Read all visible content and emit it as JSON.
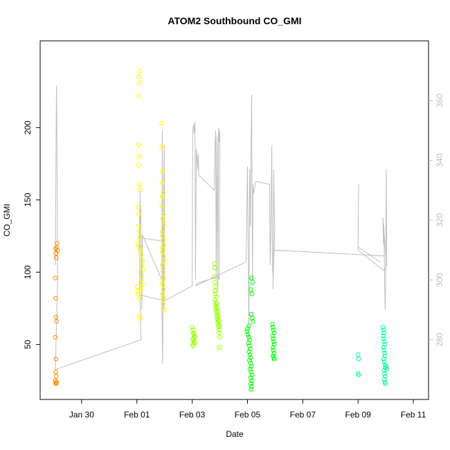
{
  "chart_data": {
    "type": "scatter",
    "title": "ATOM2 Southbound CO_GMI",
    "xlabel": "Date",
    "ylabel": "CO_GMI",
    "x_ticks": [
      "Jan 30",
      "Feb 01",
      "Feb 03",
      "Feb 05",
      "Feb 07",
      "Feb 09",
      "Feb 11"
    ],
    "x_tick_days": [
      -2,
      0,
      2,
      4,
      6,
      8,
      10
    ],
    "xlim_days": [
      -3.5,
      10.55
    ],
    "ylim": [
      12,
      260
    ],
    "y_ticks": [
      50,
      100,
      150,
      200
    ],
    "y2lim": [
      260,
      380
    ],
    "y2_ticks": [
      280,
      300,
      320,
      340,
      360
    ],
    "right_axis_color": "#bebebe",
    "grid": false,
    "legend": "none",
    "series": [
      {
        "color": "#ff8c00",
        "points": [
          [
            -2.95,
            116
          ],
          [
            -2.93,
            113
          ],
          [
            -2.92,
            110
          ],
          [
            -2.91,
            117
          ],
          [
            -2.89,
            120
          ],
          [
            -2.87,
            115
          ],
          [
            -2.95,
            96
          ],
          [
            -2.94,
            82
          ],
          [
            -2.93,
            69
          ],
          [
            -2.91,
            66
          ],
          [
            -2.95,
            55
          ],
          [
            -2.93,
            40
          ],
          [
            -2.94,
            31
          ],
          [
            -2.92,
            28
          ],
          [
            -2.95,
            25
          ],
          [
            -2.93,
            24
          ],
          [
            -2.91,
            24
          ],
          [
            -2.94,
            23
          ],
          [
            -2.92,
            23
          ]
        ]
      },
      {
        "color": "#ffff00",
        "points": [
          [
            0.1,
            239
          ],
          [
            0.08,
            235
          ],
          [
            0.09,
            231
          ],
          [
            0.07,
            222
          ],
          [
            0.06,
            188
          ],
          [
            0.08,
            180
          ],
          [
            0.05,
            174
          ],
          [
            0.1,
            161
          ],
          [
            0.12,
            157
          ],
          [
            0.05,
            145
          ],
          [
            0.08,
            140
          ],
          [
            0.06,
            132
          ],
          [
            0.09,
            128
          ],
          [
            0.11,
            124
          ],
          [
            0.04,
            120
          ],
          [
            0.07,
            118
          ],
          [
            0.12,
            115
          ],
          [
            0.15,
            112
          ],
          [
            0.2,
            108
          ],
          [
            0.18,
            105
          ],
          [
            0.22,
            102
          ],
          [
            0.19,
            98
          ],
          [
            0.17,
            95
          ],
          [
            0.21,
            92
          ],
          [
            0.16,
            90
          ],
          [
            0.14,
            88
          ],
          [
            0.05,
            85
          ],
          [
            0.08,
            82
          ],
          [
            0.1,
            70
          ],
          [
            0.12,
            68
          ],
          [
            0.02,
            90
          ],
          [
            0.03,
            87
          ],
          [
            0.9,
            203
          ],
          [
            0.9,
            187
          ],
          [
            0.93,
            170
          ],
          [
            0.91,
            162
          ],
          [
            0.95,
            155
          ],
          [
            0.92,
            152
          ],
          [
            0.9,
            146
          ],
          [
            0.96,
            140
          ],
          [
            0.94,
            137
          ],
          [
            0.97,
            133
          ],
          [
            0.91,
            128
          ],
          [
            0.93,
            125
          ],
          [
            0.95,
            122
          ],
          [
            0.98,
            119
          ],
          [
            0.9,
            117
          ],
          [
            0.92,
            114
          ],
          [
            0.96,
            111
          ],
          [
            0.99,
            108
          ],
          [
            0.93,
            105
          ],
          [
            0.95,
            100
          ],
          [
            0.97,
            96
          ],
          [
            0.91,
            93
          ],
          [
            0.94,
            91
          ],
          [
            0.96,
            88
          ],
          [
            0.92,
            85
          ],
          [
            0.98,
            82
          ],
          [
            0.95,
            78
          ],
          [
            0.99,
            74
          ]
        ]
      },
      {
        "color": "#99ff00",
        "points": [
          [
            2.0,
            62
          ],
          [
            2.02,
            60
          ],
          [
            2.04,
            58
          ],
          [
            2.06,
            57
          ],
          [
            2.08,
            56
          ],
          [
            2.1,
            55
          ],
          [
            2.03,
            54
          ],
          [
            2.05,
            53
          ],
          [
            2.07,
            52
          ],
          [
            2.09,
            51
          ],
          [
            2.01,
            50
          ],
          [
            2.04,
            49
          ],
          [
            2.8,
            106
          ],
          [
            2.82,
            103
          ],
          [
            2.8,
            97
          ],
          [
            2.83,
            93
          ],
          [
            2.85,
            90
          ],
          [
            2.81,
            87
          ],
          [
            2.84,
            85
          ],
          [
            2.87,
            83
          ],
          [
            2.82,
            81
          ],
          [
            2.86,
            79
          ],
          [
            2.89,
            78
          ],
          [
            2.84,
            77
          ],
          [
            2.88,
            76
          ],
          [
            2.91,
            75
          ],
          [
            2.86,
            74
          ],
          [
            2.9,
            73
          ],
          [
            2.93,
            72
          ],
          [
            2.88,
            71
          ],
          [
            2.92,
            70
          ],
          [
            2.95,
            69
          ],
          [
            2.9,
            68
          ],
          [
            2.94,
            67
          ],
          [
            2.97,
            66
          ],
          [
            2.92,
            65
          ],
          [
            2.96,
            64
          ],
          [
            2.99,
            63
          ],
          [
            2.95,
            62
          ],
          [
            2.98,
            60
          ],
          [
            2.97,
            58
          ],
          [
            3.0,
            55
          ],
          [
            2.99,
            48
          ]
        ]
      },
      {
        "color": "#00ff00",
        "points": [
          [
            4.15,
            96
          ],
          [
            4.18,
            93
          ],
          [
            4.12,
            88
          ],
          [
            4.16,
            85
          ],
          [
            4.14,
            71
          ],
          [
            4.17,
            68
          ],
          [
            4.2,
            66
          ],
          [
            4.05,
            63
          ],
          [
            4.0,
            61
          ],
          [
            3.98,
            59
          ],
          [
            4.02,
            57
          ],
          [
            4.05,
            55
          ],
          [
            4.08,
            53
          ],
          [
            4.03,
            51
          ],
          [
            4.07,
            49
          ],
          [
            4.1,
            47
          ],
          [
            4.05,
            45
          ],
          [
            4.09,
            43
          ],
          [
            4.12,
            41
          ],
          [
            4.07,
            39
          ],
          [
            4.11,
            37
          ],
          [
            4.14,
            35
          ],
          [
            4.09,
            33
          ],
          [
            4.13,
            31
          ],
          [
            4.16,
            29
          ],
          [
            4.11,
            27
          ],
          [
            4.15,
            25
          ],
          [
            4.12,
            23
          ],
          [
            4.14,
            21
          ],
          [
            4.13,
            19
          ],
          [
            4.9,
            64
          ],
          [
            4.92,
            62
          ],
          [
            4.94,
            60
          ],
          [
            4.96,
            58
          ],
          [
            4.91,
            56
          ],
          [
            4.93,
            54
          ],
          [
            4.95,
            52
          ],
          [
            4.97,
            50
          ],
          [
            4.92,
            48
          ],
          [
            4.94,
            46
          ],
          [
            4.96,
            44
          ],
          [
            4.93,
            42
          ],
          [
            4.95,
            41
          ],
          [
            4.97,
            40
          ]
        ]
      },
      {
        "color": "#00ff99",
        "points": [
          [
            8.0,
            43
          ],
          [
            8.02,
            40
          ],
          [
            8.0,
            30
          ],
          [
            8.02,
            29
          ],
          [
            8.9,
            62
          ],
          [
            8.92,
            60
          ],
          [
            8.94,
            58
          ],
          [
            8.91,
            56
          ],
          [
            8.93,
            54
          ],
          [
            8.95,
            52
          ],
          [
            8.97,
            50
          ],
          [
            8.92,
            48
          ],
          [
            8.94,
            46
          ],
          [
            8.96,
            44
          ],
          [
            8.98,
            42
          ],
          [
            8.93,
            40
          ],
          [
            8.95,
            38
          ],
          [
            8.97,
            36
          ],
          [
            8.99,
            34
          ],
          [
            8.94,
            32
          ],
          [
            8.96,
            30
          ],
          [
            8.98,
            28
          ],
          [
            8.95,
            26
          ],
          [
            8.97,
            24
          ],
          [
            8.99,
            23
          ],
          [
            9.02,
            35
          ],
          [
            9.04,
            33
          ]
        ]
      }
    ],
    "gray_line": {
      "color": "#bebebe",
      "axis": "right",
      "points": [
        [
          -2.95,
          305
        ],
        [
          -2.93,
          340
        ],
        [
          -2.91,
          365
        ],
        [
          -2.89,
          340
        ],
        [
          -2.87,
          300
        ],
        [
          -2.95,
          270
        ],
        [
          0.15,
          280
        ],
        [
          0.1,
          300
        ],
        [
          0.12,
          330
        ],
        [
          0.08,
          310
        ],
        [
          0.14,
          325
        ],
        [
          0.18,
          290
        ],
        [
          0.2,
          315
        ],
        [
          0.9,
          300
        ],
        [
          0.92,
          350
        ],
        [
          0.94,
          285
        ],
        [
          0.96,
          320
        ],
        [
          0.98,
          310
        ],
        [
          0.9,
          295
        ],
        [
          0.93,
          272
        ],
        [
          0.95,
          300
        ],
        [
          0.97,
          330
        ],
        [
          0.99,
          345
        ],
        [
          1.0,
          312
        ],
        [
          0.98,
          290
        ],
        [
          0.95,
          313
        ],
        [
          0.2,
          314
        ],
        [
          0.1,
          295
        ],
        [
          1.0,
          293
        ],
        [
          2.0,
          298
        ],
        [
          2.02,
          350
        ],
        [
          2.05,
          352
        ],
        [
          2.07,
          349
        ],
        [
          2.1,
          353
        ],
        [
          2.12,
          300
        ],
        [
          2.15,
          344
        ],
        [
          2.18,
          340
        ],
        [
          2.2,
          337
        ],
        [
          2.22,
          342
        ],
        [
          2.24,
          335
        ],
        [
          2.8,
          330
        ],
        [
          2.82,
          345
        ],
        [
          2.85,
          350
        ],
        [
          2.87,
          300
        ],
        [
          2.9,
          348
        ],
        [
          2.93,
          296
        ],
        [
          2.95,
          351
        ],
        [
          2.97,
          346
        ],
        [
          3.0,
          350
        ],
        [
          2.98,
          300
        ],
        [
          2.95,
          301
        ],
        [
          2.2,
          299
        ],
        [
          2.12,
          298
        ],
        [
          3.95,
          306
        ],
        [
          4.0,
          338
        ],
        [
          4.03,
          305
        ],
        [
          4.05,
          280
        ],
        [
          4.08,
          337
        ],
        [
          4.1,
          318
        ],
        [
          4.12,
          335
        ],
        [
          4.15,
          362
        ],
        [
          4.18,
          300
        ],
        [
          4.2,
          332
        ],
        [
          4.22,
          329
        ],
        [
          4.3,
          333
        ],
        [
          4.8,
          332
        ],
        [
          4.82,
          305
        ],
        [
          4.85,
          320
        ],
        [
          4.88,
          345
        ],
        [
          4.9,
          305
        ],
        [
          4.93,
          300
        ],
        [
          4.95,
          337
        ],
        [
          4.97,
          322
        ],
        [
          4.99,
          318
        ],
        [
          4.92,
          297
        ],
        [
          4.95,
          310
        ],
        [
          9.0,
          308
        ],
        [
          8.95,
          315
        ],
        [
          8.9,
          321
        ],
        [
          8.92,
          312
        ],
        [
          8.94,
          318
        ],
        [
          8.96,
          300
        ],
        [
          8.98,
          290
        ],
        [
          9.0,
          300
        ],
        [
          9.02,
          337
        ],
        [
          9.04,
          305
        ],
        [
          8.95,
          303
        ],
        [
          8.0,
          310
        ],
        [
          8.02,
          332
        ],
        [
          8.0,
          311
        ],
        [
          8.8,
          306
        ]
      ]
    }
  }
}
